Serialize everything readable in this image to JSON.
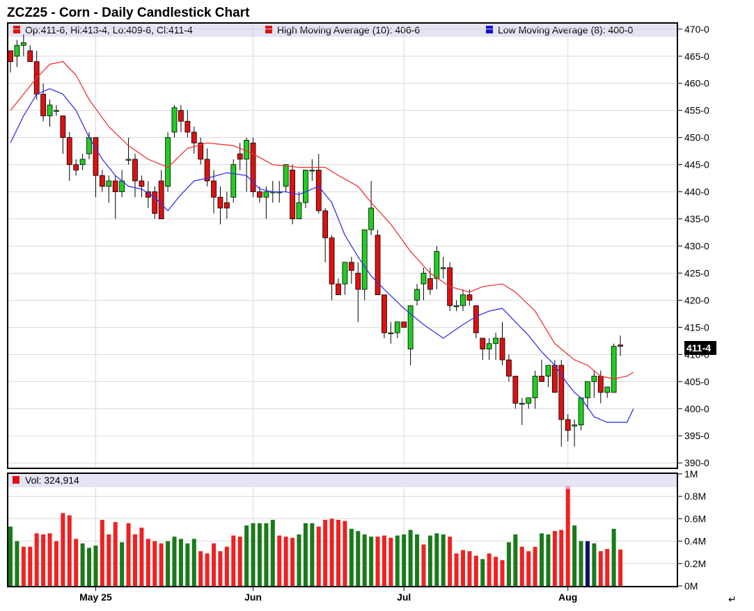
{
  "title": "ZCZ25 - Corn - Daily Candlestick Chart",
  "legend": {
    "ohlc": "Op:411-6, Hi:413-4, Lo:409-6, Cl:411-4",
    "high_ma": "High Moving Average (10): 406-6",
    "low_ma": "Low Moving Average (8): 400-0",
    "volume": "Vol: 324,914"
  },
  "last_price_label": "411-4",
  "return_glyph": "↵",
  "colors": {
    "up": "#22cc22",
    "down": "#dd1111",
    "high_ma": "#ee3333",
    "low_ma": "#3333ee",
    "vol_up": "#1a7a1a",
    "vol_down": "#ee2222",
    "vol_highlight_top": "#ff99cc",
    "vol_dark": "#111166",
    "legend_bg": "#e4e4f4",
    "grid": "#d8d8d8"
  },
  "chart_data": [
    {
      "type": "candlestick",
      "title": "ZCZ25 - Corn - Daily Candlestick Chart",
      "ylim": [
        389,
        471
      ],
      "y_ticks": [
        390,
        395,
        400,
        405,
        410,
        415,
        420,
        425,
        430,
        435,
        440,
        445,
        450,
        455,
        460,
        465,
        470
      ],
      "y_tick_labels": [
        "390-0",
        "395-0",
        "400-0",
        "405-0",
        "410-0",
        "415-0",
        "420-0",
        "425-0",
        "430-0",
        "435-0",
        "440-0",
        "445-0",
        "450-0",
        "455-0",
        "460-0",
        "465-0",
        "470-0"
      ],
      "x_ticks": [
        {
          "label": "May 25",
          "index": 13
        },
        {
          "label": "Jun",
          "index": 37
        },
        {
          "label": "Jul",
          "index": 60
        },
        {
          "label": "Aug",
          "index": 85
        }
      ],
      "ohlc": [
        [
          466,
          466,
          462,
          464
        ],
        [
          465,
          468,
          463,
          467
        ],
        [
          467,
          469,
          465,
          467.5
        ],
        [
          466,
          467,
          464,
          464
        ],
        [
          464,
          466,
          457,
          458
        ],
        [
          458,
          460,
          453,
          454
        ],
        [
          454,
          457,
          452,
          456
        ],
        [
          455,
          456,
          454,
          455
        ],
        [
          454,
          454,
          447,
          450
        ],
        [
          450,
          451,
          442,
          445
        ],
        [
          445,
          446,
          443,
          444
        ],
        [
          445,
          447,
          444,
          446
        ],
        [
          447,
          451,
          446,
          450
        ],
        [
          450,
          450,
          439,
          443
        ],
        [
          443,
          444,
          440,
          441
        ],
        [
          441,
          443,
          438,
          442
        ],
        [
          442,
          443,
          435,
          440
        ],
        [
          440,
          444,
          439,
          442
        ],
        [
          446,
          450,
          445,
          446
        ],
        [
          446,
          447,
          439,
          442
        ],
        [
          442,
          443,
          439,
          441
        ],
        [
          440,
          442,
          437,
          439
        ],
        [
          440,
          441,
          435,
          436
        ],
        [
          442,
          444,
          435,
          435
        ],
        [
          441,
          451,
          440,
          450
        ],
        [
          451,
          456,
          450,
          455.5
        ],
        [
          455,
          456,
          451,
          453
        ],
        [
          453,
          455,
          450,
          451
        ],
        [
          451,
          452,
          447,
          449
        ],
        [
          449,
          450,
          445,
          446
        ],
        [
          446,
          448,
          441,
          442
        ],
        [
          442,
          444,
          436,
          439
        ],
        [
          439,
          441,
          434,
          437
        ],
        [
          438,
          440,
          435,
          437
        ],
        [
          439,
          446,
          438,
          445
        ],
        [
          447,
          449,
          444,
          446
        ],
        [
          446,
          450,
          440,
          449.5
        ],
        [
          449,
          450,
          439,
          440
        ],
        [
          440,
          441,
          438,
          439
        ],
        [
          439,
          441,
          435,
          440
        ],
        [
          440,
          442,
          438,
          440
        ],
        [
          440,
          442,
          438,
          440
        ],
        [
          441,
          445,
          440,
          445
        ],
        [
          444,
          445,
          434,
          435
        ],
        [
          435,
          440,
          435,
          438
        ],
        [
          438,
          444,
          437,
          444
        ],
        [
          444,
          446,
          442,
          444
        ],
        [
          444,
          447,
          436,
          436.5
        ],
        [
          436.5,
          437,
          427,
          431.5
        ],
        [
          431.5,
          432,
          420,
          423
        ],
        [
          423,
          424,
          421,
          421
        ],
        [
          423,
          427,
          421,
          427
        ],
        [
          427,
          428,
          423,
          425.5
        ],
        [
          425,
          427,
          416,
          422
        ],
        [
          422,
          433,
          420,
          433
        ],
        [
          433,
          442,
          432,
          437
        ],
        [
          432,
          433,
          421,
          421
        ],
        [
          421,
          421,
          413,
          414
        ],
        [
          414,
          416,
          412,
          414
        ],
        [
          414,
          416,
          413,
          416
        ],
        [
          416,
          416,
          415,
          415
        ],
        [
          411,
          419,
          408,
          419
        ],
        [
          420,
          423,
          419,
          422
        ],
        [
          423,
          426,
          420,
          425
        ],
        [
          424,
          426,
          421,
          422
        ],
        [
          424,
          430,
          422,
          429
        ],
        [
          426,
          428,
          424,
          426
        ],
        [
          426,
          427,
          418,
          419
        ],
        [
          419,
          420,
          418,
          419
        ],
        [
          419,
          422,
          418,
          421
        ],
        [
          421,
          422,
          419,
          420
        ],
        [
          419,
          419,
          413,
          414
        ],
        [
          413,
          413,
          409,
          411
        ],
        [
          411,
          413,
          409,
          412
        ],
        [
          412,
          414,
          409,
          413
        ],
        [
          413,
          416,
          408,
          409
        ],
        [
          409,
          410,
          405,
          406
        ],
        [
          406,
          406,
          400,
          401
        ],
        [
          401,
          402,
          397,
          401
        ],
        [
          401,
          402,
          400,
          402
        ],
        [
          402,
          407,
          400,
          406
        ],
        [
          406,
          409,
          405,
          405
        ],
        [
          406,
          408,
          404,
          408
        ],
        [
          408,
          409,
          403,
          403
        ],
        [
          408,
          409,
          393,
          398
        ],
        [
          398,
          399,
          394,
          396
        ],
        [
          397,
          398,
          393,
          397
        ],
        [
          397,
          402,
          396,
          402
        ],
        [
          402,
          405,
          400,
          405
        ],
        [
          405,
          407,
          402,
          406
        ],
        [
          406,
          407,
          401,
          403
        ],
        [
          403,
          404,
          402,
          404
        ],
        [
          403,
          412,
          403,
          411.5
        ],
        [
          411.75,
          413.5,
          409.75,
          411.5
        ]
      ],
      "high_ma": [
        [
          0,
          455
        ],
        [
          4,
          461
        ],
        [
          6,
          463.5
        ],
        [
          8,
          464
        ],
        [
          10,
          461.5
        ],
        [
          12,
          457
        ],
        [
          15,
          452
        ],
        [
          18,
          448.5
        ],
        [
          21,
          446
        ],
        [
          24,
          444.5
        ],
        [
          27,
          448
        ],
        [
          30,
          449
        ],
        [
          34,
          448.5
        ],
        [
          37,
          447
        ],
        [
          40,
          445
        ],
        [
          44,
          444.5
        ],
        [
          48,
          444.5
        ],
        [
          50,
          443
        ],
        [
          53,
          441
        ],
        [
          55,
          438
        ],
        [
          58,
          434
        ],
        [
          61,
          429
        ],
        [
          64,
          425
        ],
        [
          67,
          422.5
        ],
        [
          70,
          421.5
        ],
        [
          72,
          422.5
        ],
        [
          75,
          423
        ],
        [
          77,
          421.5
        ],
        [
          80,
          418
        ],
        [
          83,
          412
        ],
        [
          86,
          409
        ],
        [
          88,
          408
        ],
        [
          90,
          406
        ],
        [
          92,
          405.5
        ],
        [
          94,
          406
        ],
        [
          95,
          406.75
        ]
      ],
      "low_ma": [
        [
          0,
          449
        ],
        [
          2,
          454
        ],
        [
          4,
          458
        ],
        [
          6,
          459
        ],
        [
          8,
          458
        ],
        [
          10,
          455
        ],
        [
          12,
          450
        ],
        [
          14,
          446
        ],
        [
          16,
          443
        ],
        [
          18,
          441
        ],
        [
          20,
          440.5
        ],
        [
          22,
          439
        ],
        [
          24,
          436.5
        ],
        [
          26,
          439.5
        ],
        [
          28,
          442
        ],
        [
          30,
          442.5
        ],
        [
          33,
          443.5
        ],
        [
          36,
          443
        ],
        [
          38,
          440.5
        ],
        [
          40,
          440
        ],
        [
          42,
          440
        ],
        [
          44,
          439.5
        ],
        [
          47,
          441
        ],
        [
          49,
          438
        ],
        [
          51,
          432
        ],
        [
          53,
          428
        ],
        [
          55,
          424.5
        ],
        [
          57,
          422
        ],
        [
          60,
          418.5
        ],
        [
          63,
          415.5
        ],
        [
          66,
          413
        ],
        [
          69,
          415.5
        ],
        [
          71,
          417
        ],
        [
          73,
          418
        ],
        [
          75,
          418.5
        ],
        [
          77,
          416
        ],
        [
          79,
          413.5
        ],
        [
          81,
          410.5
        ],
        [
          83,
          408
        ],
        [
          85,
          404.5
        ],
        [
          86,
          403
        ],
        [
          87,
          402
        ],
        [
          89,
          398.5
        ],
        [
          91,
          397.5
        ],
        [
          93,
          397.5
        ],
        [
          94,
          397.5
        ],
        [
          95,
          400
        ]
      ]
    },
    {
      "type": "bar",
      "title": "Vol: 324,914",
      "ylim": [
        0,
        1000000
      ],
      "y_tick_labels": [
        "0M",
        "0.2M",
        "0.4M",
        "0.6M",
        "0.8M",
        "1M"
      ],
      "y_ticks": [
        0,
        200000,
        400000,
        600000,
        800000,
        1000000
      ],
      "values": [
        530000,
        400000,
        350000,
        350000,
        470000,
        460000,
        470000,
        400000,
        650000,
        630000,
        420000,
        380000,
        340000,
        360000,
        590000,
        460000,
        570000,
        390000,
        560000,
        460000,
        520000,
        420000,
        400000,
        380000,
        400000,
        440000,
        420000,
        380000,
        420000,
        310000,
        290000,
        380000,
        310000,
        350000,
        450000,
        440000,
        540000,
        560000,
        560000,
        560000,
        590000,
        450000,
        440000,
        430000,
        460000,
        560000,
        560000,
        530000,
        590000,
        600000,
        590000,
        580000,
        510000,
        490000,
        460000,
        440000,
        440000,
        450000,
        430000,
        450000,
        460000,
        500000,
        460000,
        370000,
        450000,
        470000,
        460000,
        440000,
        290000,
        320000,
        310000,
        270000,
        240000,
        290000,
        260000,
        230000,
        390000,
        460000,
        350000,
        310000,
        350000,
        470000,
        460000,
        490000,
        500000,
        890000,
        540000,
        400000,
        400000,
        380000,
        310000,
        330000,
        510000,
        324914
      ],
      "up_flags": [
        1,
        1,
        0,
        0,
        0,
        0,
        0,
        0,
        0,
        0,
        0,
        1,
        1,
        1,
        0,
        0,
        0,
        1,
        0,
        0,
        0,
        0,
        0,
        0,
        1,
        1,
        1,
        1,
        1,
        0,
        0,
        0,
        0,
        0,
        0,
        0,
        1,
        1,
        1,
        1,
        1,
        0,
        0,
        0,
        1,
        1,
        1,
        0,
        0,
        0,
        0,
        0,
        1,
        1,
        1,
        1,
        0,
        0,
        0,
        1,
        1,
        1,
        1,
        0,
        1,
        1,
        1,
        0,
        0,
        0,
        0,
        0,
        1,
        0,
        0,
        0,
        1,
        1,
        0,
        0,
        0,
        1,
        1,
        0,
        0,
        0,
        1,
        1,
        1,
        1,
        0,
        0,
        1,
        0
      ]
    }
  ]
}
